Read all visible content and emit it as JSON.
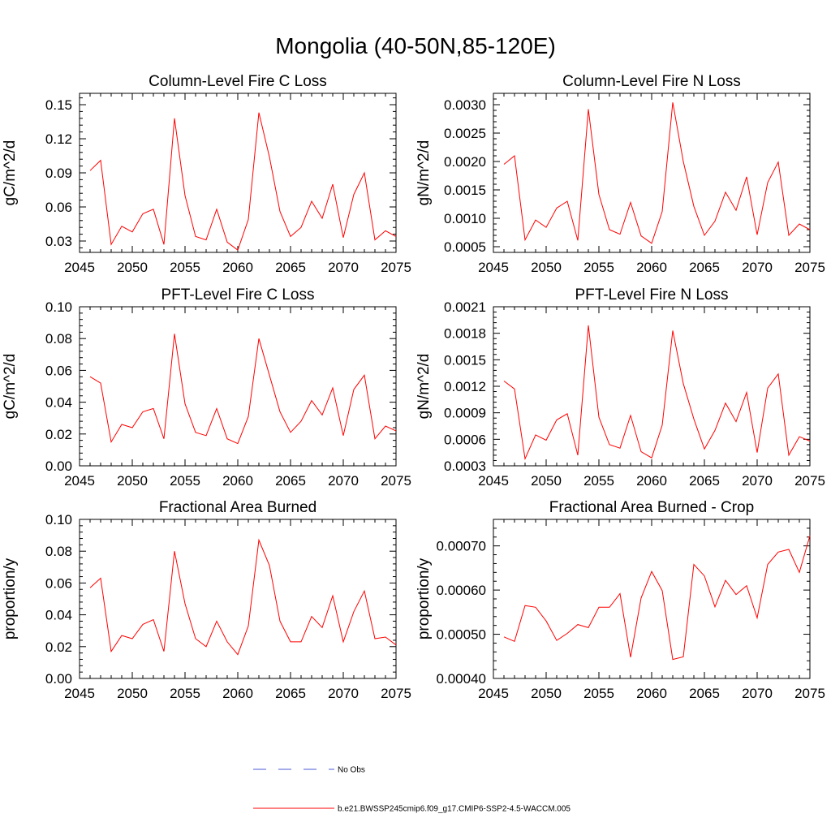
{
  "figure": {
    "title": "Mongolia (40-50N,85-120E)",
    "series_color": "#ff0000",
    "obs_color": "#4a5ad6"
  },
  "legend": {
    "position": "bottom-center",
    "items": [
      {
        "label": "No Obs",
        "style": "dashed",
        "color": "#4a5ad6"
      },
      {
        "label": "b.e21.BWSSP245cmip6.f09_g17.CMIP6-SSP2-4.5-WACCM.005",
        "style": "solid",
        "color": "#ff0000"
      }
    ]
  },
  "chart_data": [
    {
      "type": "line",
      "title": "Column-Level Fire C Loss",
      "ylabel": "gC/m^2/d",
      "xlim": [
        2045,
        2075
      ],
      "ylim": [
        0.02,
        0.16
      ],
      "x_ticks": [
        2045,
        2050,
        2055,
        2060,
        2065,
        2070,
        2075
      ],
      "y_ticks": [
        "0.03",
        "0.06",
        "0.09",
        "0.12",
        "0.15"
      ],
      "y_tick_values": [
        0.03,
        0.06,
        0.09,
        0.12,
        0.15
      ],
      "x": [
        2046,
        2047,
        2048,
        2049,
        2050,
        2051,
        2052,
        2053,
        2054,
        2055,
        2056,
        2057,
        2058,
        2059,
        2060,
        2061,
        2062,
        2063,
        2064,
        2065,
        2066,
        2067,
        2068,
        2069,
        2070,
        2071,
        2072,
        2073,
        2074,
        2075
      ],
      "values": [
        0.092,
        0.101,
        0.027,
        0.043,
        0.038,
        0.054,
        0.058,
        0.027,
        0.138,
        0.07,
        0.034,
        0.031,
        0.058,
        0.029,
        0.022,
        0.049,
        0.143,
        0.104,
        0.056,
        0.034,
        0.042,
        0.065,
        0.05,
        0.08,
        0.033,
        0.071,
        0.09,
        0.031,
        0.039,
        0.034
      ]
    },
    {
      "type": "line",
      "title": "Column-Level Fire N Loss",
      "ylabel": "gN/m^2/d",
      "xlim": [
        2045,
        2075
      ],
      "ylim": [
        0.0004,
        0.0032
      ],
      "x_ticks": [
        2045,
        2050,
        2055,
        2060,
        2065,
        2070,
        2075
      ],
      "y_ticks": [
        "0.0005",
        "0.0010",
        "0.0015",
        "0.0020",
        "0.0025",
        "0.0030"
      ],
      "y_tick_values": [
        0.0005,
        0.001,
        0.0015,
        0.002,
        0.0025,
        0.003
      ],
      "x": [
        2046,
        2047,
        2048,
        2049,
        2050,
        2051,
        2052,
        2053,
        2054,
        2055,
        2056,
        2057,
        2058,
        2059,
        2060,
        2061,
        2062,
        2063,
        2064,
        2065,
        2066,
        2067,
        2068,
        2069,
        2070,
        2071,
        2072,
        2073,
        2074,
        2075
      ],
      "values": [
        0.00195,
        0.0021,
        0.00062,
        0.00097,
        0.00084,
        0.00118,
        0.0013,
        0.00061,
        0.00292,
        0.00142,
        0.0008,
        0.00072,
        0.00128,
        0.00069,
        0.00056,
        0.00112,
        0.00304,
        0.002,
        0.00121,
        0.0007,
        0.00095,
        0.00146,
        0.00114,
        0.00173,
        0.00071,
        0.00163,
        0.00199,
        0.0007,
        0.0009,
        0.0008
      ]
    },
    {
      "type": "line",
      "title": "PFT-Level Fire C Loss",
      "ylabel": "gC/m^2/d",
      "xlim": [
        2045,
        2075
      ],
      "ylim": [
        0.0,
        0.1
      ],
      "x_ticks": [
        2045,
        2050,
        2055,
        2060,
        2065,
        2070,
        2075
      ],
      "y_ticks": [
        "0.00",
        "0.02",
        "0.04",
        "0.06",
        "0.08",
        "0.10"
      ],
      "y_tick_values": [
        0.0,
        0.02,
        0.04,
        0.06,
        0.08,
        0.1
      ],
      "x": [
        2046,
        2047,
        2048,
        2049,
        2050,
        2051,
        2052,
        2053,
        2054,
        2055,
        2056,
        2057,
        2058,
        2059,
        2060,
        2061,
        2062,
        2063,
        2064,
        2065,
        2066,
        2067,
        2068,
        2069,
        2070,
        2071,
        2072,
        2073,
        2074,
        2075
      ],
      "values": [
        0.056,
        0.052,
        0.015,
        0.026,
        0.024,
        0.034,
        0.036,
        0.017,
        0.083,
        0.039,
        0.021,
        0.019,
        0.036,
        0.017,
        0.014,
        0.031,
        0.08,
        0.057,
        0.034,
        0.021,
        0.028,
        0.041,
        0.032,
        0.049,
        0.019,
        0.048,
        0.057,
        0.017,
        0.025,
        0.022
      ]
    },
    {
      "type": "line",
      "title": "PFT-Level Fire N Loss",
      "ylabel": "gN/m^2/d",
      "xlim": [
        2045,
        2075
      ],
      "ylim": [
        0.0003,
        0.0021
      ],
      "x_ticks": [
        2045,
        2050,
        2055,
        2060,
        2065,
        2070,
        2075
      ],
      "y_ticks": [
        "0.0003",
        "0.0006",
        "0.0009",
        "0.0012",
        "0.0015",
        "0.0018",
        "0.0021"
      ],
      "y_tick_values": [
        0.0003,
        0.0006,
        0.0009,
        0.0012,
        0.0015,
        0.0018,
        0.0021
      ],
      "x": [
        2046,
        2047,
        2048,
        2049,
        2050,
        2051,
        2052,
        2053,
        2054,
        2055,
        2056,
        2057,
        2058,
        2059,
        2060,
        2061,
        2062,
        2063,
        2064,
        2065,
        2066,
        2067,
        2068,
        2069,
        2070,
        2071,
        2072,
        2073,
        2074,
        2075
      ],
      "values": [
        0.00126,
        0.00117,
        0.00038,
        0.00065,
        0.00059,
        0.00082,
        0.00089,
        0.00042,
        0.00189,
        0.00085,
        0.00054,
        0.0005,
        0.00087,
        0.00046,
        0.00039,
        0.00076,
        0.00183,
        0.00123,
        0.00083,
        0.00049,
        0.0007,
        0.00101,
        0.0008,
        0.00113,
        0.00045,
        0.00118,
        0.00134,
        0.00042,
        0.00063,
        0.00058
      ]
    },
    {
      "type": "line",
      "title": "Fractional Area Burned",
      "ylabel": "proportion/y",
      "xlim": [
        2045,
        2075
      ],
      "ylim": [
        0.0,
        0.1
      ],
      "x_ticks": [
        2045,
        2050,
        2055,
        2060,
        2065,
        2070,
        2075
      ],
      "y_ticks": [
        "0.00",
        "0.02",
        "0.04",
        "0.06",
        "0.08",
        "0.10"
      ],
      "y_tick_values": [
        0.0,
        0.02,
        0.04,
        0.06,
        0.08,
        0.1
      ],
      "x": [
        2046,
        2047,
        2048,
        2049,
        2050,
        2051,
        2052,
        2053,
        2054,
        2055,
        2056,
        2057,
        2058,
        2059,
        2060,
        2061,
        2062,
        2063,
        2064,
        2065,
        2066,
        2067,
        2068,
        2069,
        2070,
        2071,
        2072,
        2073,
        2074,
        2075
      ],
      "values": [
        0.057,
        0.063,
        0.017,
        0.027,
        0.025,
        0.034,
        0.037,
        0.017,
        0.08,
        0.047,
        0.025,
        0.02,
        0.036,
        0.023,
        0.015,
        0.033,
        0.087,
        0.071,
        0.036,
        0.023,
        0.023,
        0.039,
        0.032,
        0.052,
        0.023,
        0.042,
        0.055,
        0.025,
        0.026,
        0.021
      ]
    },
    {
      "type": "line",
      "title": "Fractional Area Burned - Crop",
      "ylabel": "proportion/y",
      "xlim": [
        2045,
        2075
      ],
      "ylim": [
        0.0004,
        0.00076
      ],
      "x_ticks": [
        2045,
        2050,
        2055,
        2060,
        2065,
        2070,
        2075
      ],
      "y_ticks": [
        "0.00040",
        "0.00050",
        "0.00060",
        "0.00070"
      ],
      "y_tick_values": [
        0.0004,
        0.0005,
        0.0006,
        0.0007
      ],
      "x": [
        2046,
        2047,
        2048,
        2049,
        2050,
        2051,
        2052,
        2053,
        2054,
        2055,
        2056,
        2057,
        2058,
        2059,
        2060,
        2061,
        2062,
        2063,
        2064,
        2065,
        2066,
        2067,
        2068,
        2069,
        2070,
        2071,
        2072,
        2073,
        2074,
        2075
      ],
      "values": [
        0.000494,
        0.000484,
        0.000565,
        0.000561,
        0.00053,
        0.000486,
        0.000502,
        0.000522,
        0.000515,
        0.000561,
        0.000561,
        0.000592,
        0.000448,
        0.000582,
        0.000642,
        0.000599,
        0.000443,
        0.000449,
        0.000658,
        0.000632,
        0.000562,
        0.000622,
        0.00059,
        0.00061,
        0.000537,
        0.000658,
        0.000686,
        0.000692,
        0.00064,
        0.000723
      ]
    }
  ]
}
